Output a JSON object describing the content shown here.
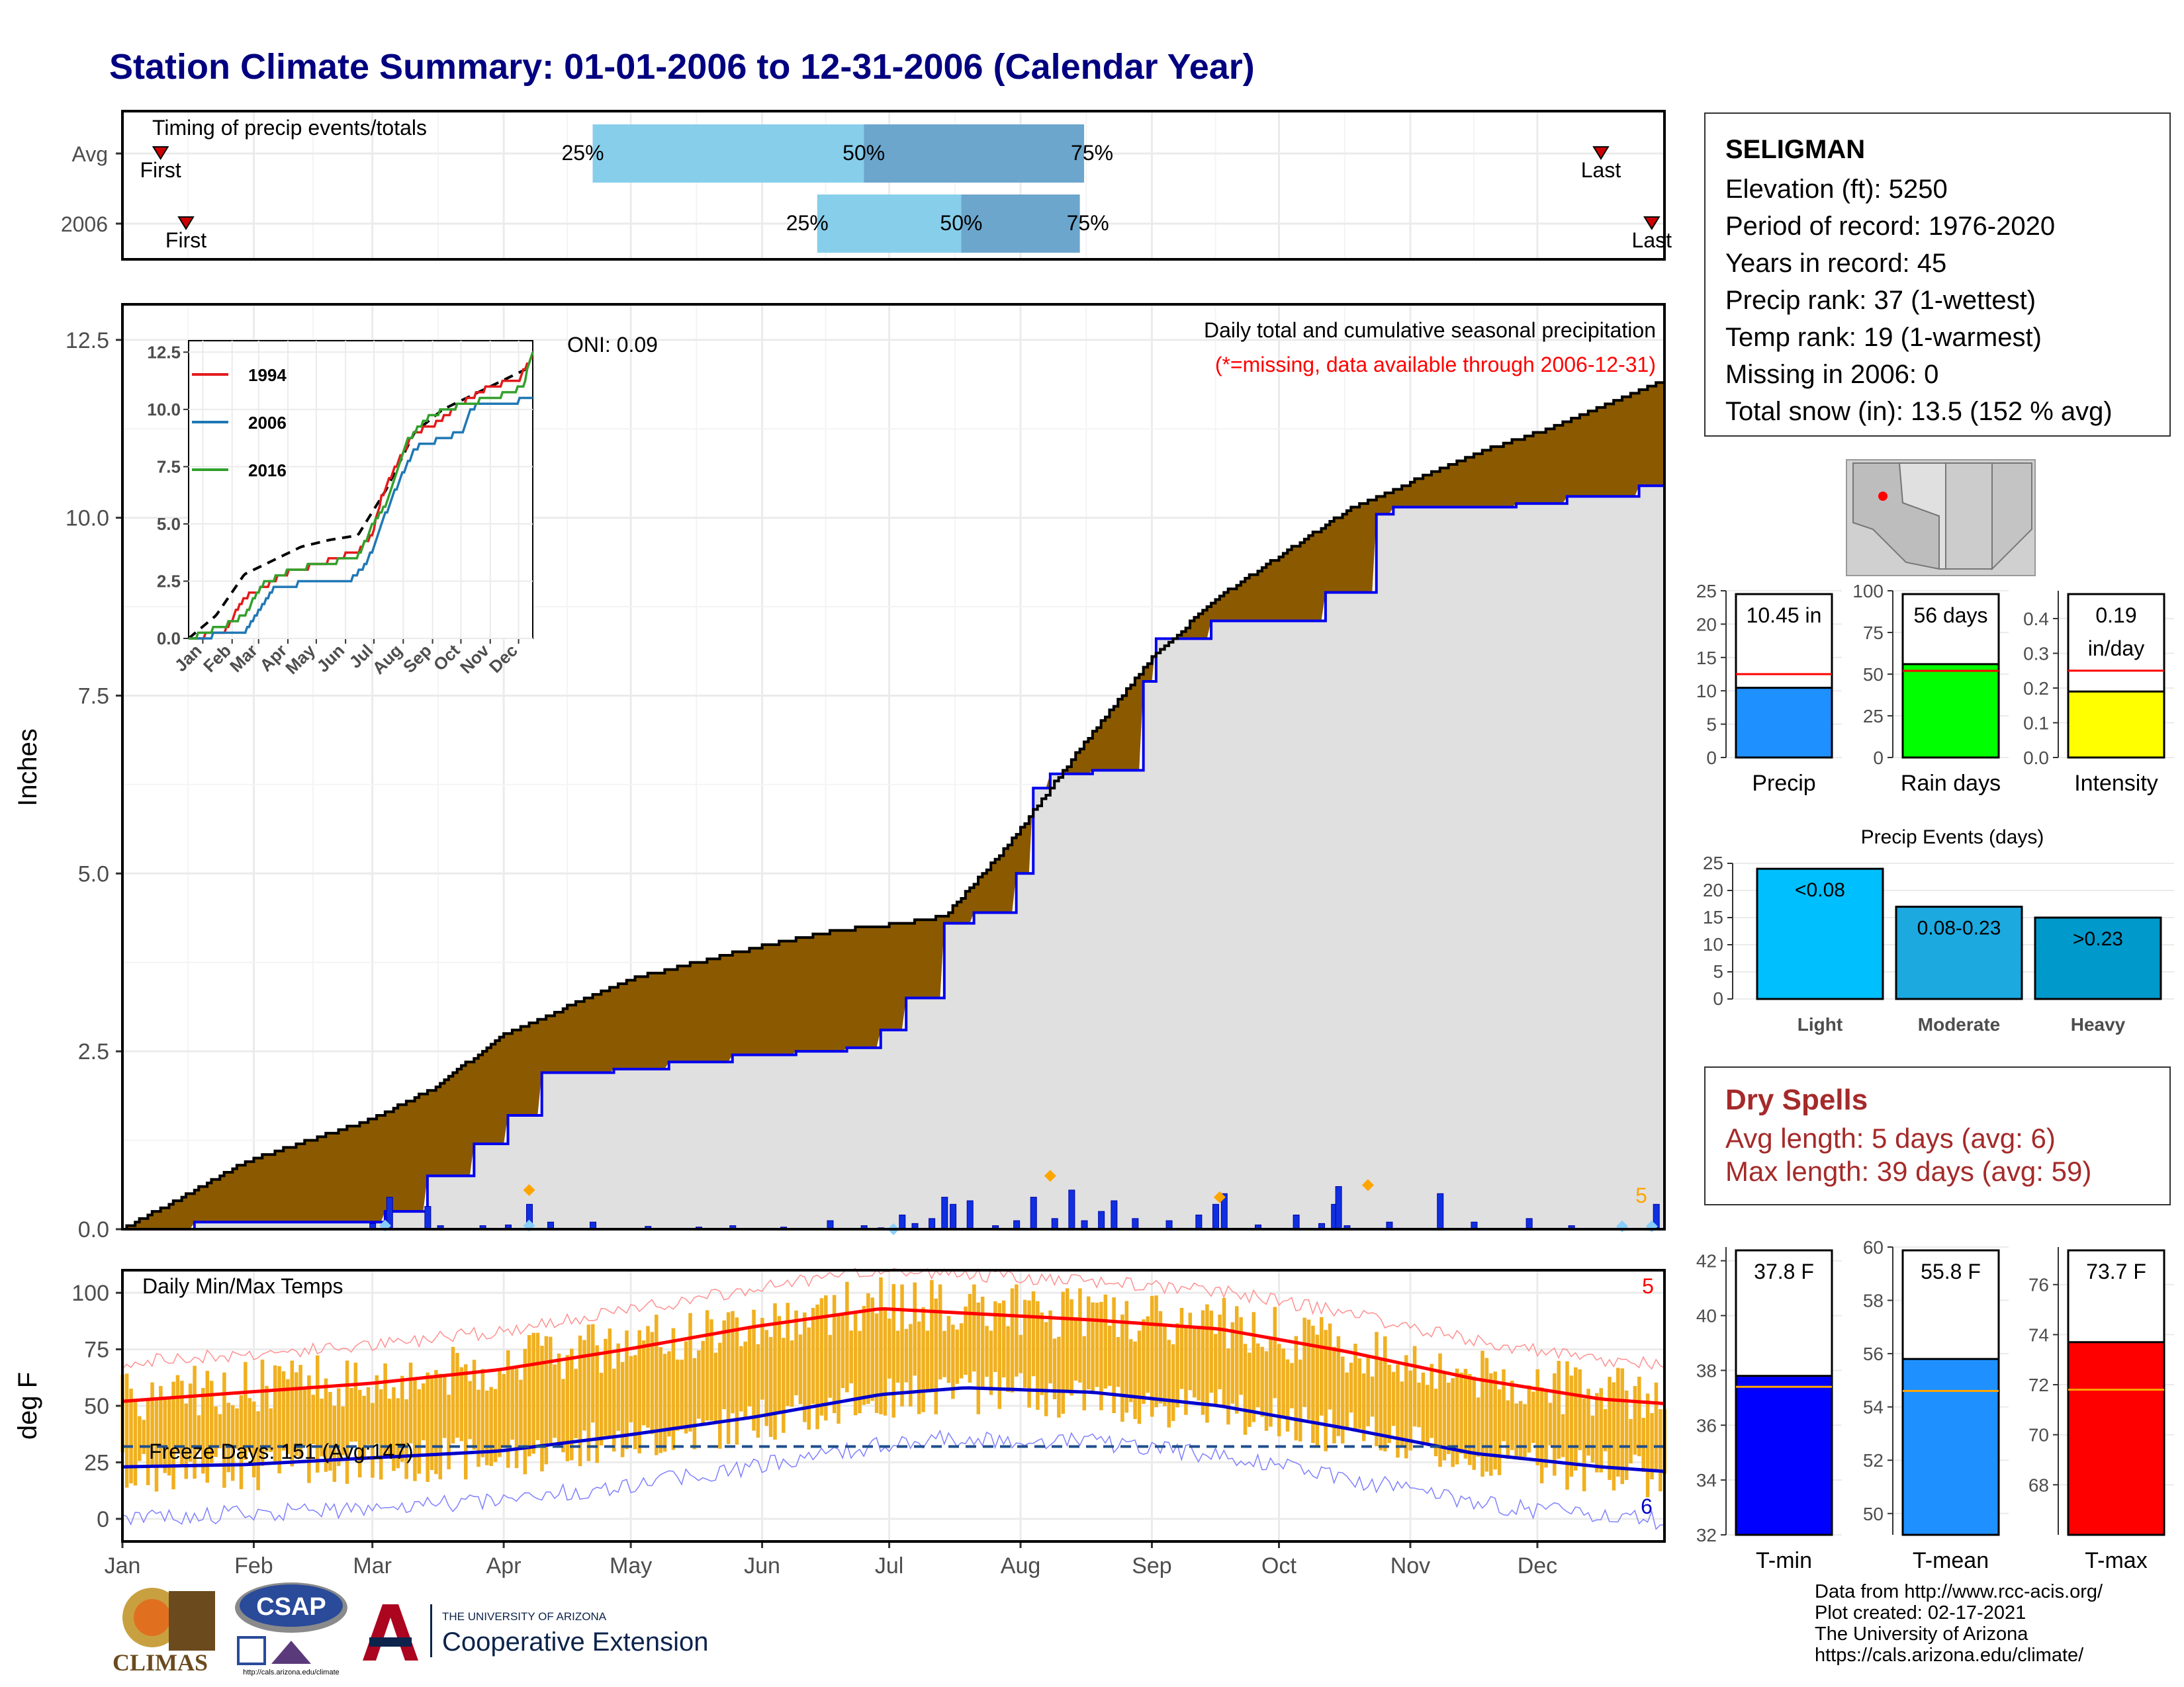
{
  "title": "Station Climate Summary: 01-01-2006 to 12-31-2006 (Calendar Year)",
  "colors": {
    "title": "#000080",
    "precip_area": "#8B5A00",
    "cum_obs_fill": "#E0E0E0",
    "cum_obs_line": "#0000EE",
    "timing_light": "#87CEEB",
    "timing_dark": "#6CA6CD",
    "temp_band": "#F0B020",
    "tmax_line": "#FF0000",
    "tmin_line": "#0000CC",
    "dry_spells": "#A52A2A"
  },
  "timing": {
    "label": "Timing of precip events/totals",
    "rows": [
      {
        "name": "Avg",
        "first_label": "First",
        "first_doy": 10,
        "last_label": "Last",
        "last_doy": 350,
        "q25_doy": 112,
        "q50_doy": 176,
        "q75_doy": 228,
        "p25": "25%",
        "p50": "50%",
        "p75": "75%"
      },
      {
        "name": "2006",
        "first_label": "First",
        "first_doy": 16,
        "last_label": "Last",
        "last_doy": 362,
        "q25_doy": 165,
        "q50_doy": 199,
        "q75_doy": 227,
        "p25": "25%",
        "p50": "50%",
        "p75": "75%"
      }
    ]
  },
  "main": {
    "ylabel": "Inches",
    "oni": "ONI: 0.09",
    "subtitle": "Daily total and cumulative seasonal precipitation",
    "missing_note": "(*=missing, data available through 2006-12-31)",
    "right_count": "5",
    "yticks": [
      "0.0",
      "2.5",
      "5.0",
      "7.5",
      "10.0",
      "12.5"
    ],
    "ylim": [
      0,
      13
    ],
    "avg_cum_anchors": [
      [
        1,
        0
      ],
      [
        15,
        0.45
      ],
      [
        30,
        0.95
      ],
      [
        60,
        1.55
      ],
      [
        75,
        2.0
      ],
      [
        90,
        2.7
      ],
      [
        105,
        3.1
      ],
      [
        120,
        3.5
      ],
      [
        150,
        3.95
      ],
      [
        170,
        4.2
      ],
      [
        185,
        4.3
      ],
      [
        195,
        4.4
      ],
      [
        210,
        5.4
      ],
      [
        225,
        6.6
      ],
      [
        245,
        8.1
      ],
      [
        260,
        8.9
      ],
      [
        275,
        9.5
      ],
      [
        290,
        10.1
      ],
      [
        305,
        10.5
      ],
      [
        320,
        10.9
      ],
      [
        340,
        11.3
      ],
      [
        365,
        11.95
      ]
    ],
    "obs_cum_steps": [
      [
        1,
        0
      ],
      [
        18,
        0.1
      ],
      [
        63,
        0.25
      ],
      [
        73,
        0.75
      ],
      [
        84,
        1.2
      ],
      [
        92,
        1.6
      ],
      [
        100,
        2.2
      ],
      [
        117,
        2.25
      ],
      [
        130,
        2.35
      ],
      [
        145,
        2.45
      ],
      [
        160,
        2.5
      ],
      [
        172,
        2.55
      ],
      [
        180,
        2.8
      ],
      [
        186,
        3.25
      ],
      [
        195,
        4.3
      ],
      [
        202,
        4.45
      ],
      [
        212,
        5.0
      ],
      [
        216,
        6.2
      ],
      [
        220,
        6.4
      ],
      [
        230,
        6.45
      ],
      [
        242,
        7.7
      ],
      [
        245,
        8.3
      ],
      [
        258,
        8.55
      ],
      [
        285,
        8.95
      ],
      [
        297,
        10.05
      ],
      [
        301,
        10.15
      ],
      [
        330,
        10.2
      ],
      [
        342,
        10.3
      ],
      [
        359,
        10.45
      ],
      [
        365,
        10.45
      ]
    ],
    "daily_precip": [
      [
        60,
        0.08
      ],
      [
        64,
        0.45
      ],
      [
        73,
        0.32
      ],
      [
        76,
        0.05
      ],
      [
        86,
        0.05
      ],
      [
        92,
        0.06
      ],
      [
        97,
        0.35
      ],
      [
        102,
        0.1
      ],
      [
        112,
        0.1
      ],
      [
        125,
        0.04
      ],
      [
        137,
        0.03
      ],
      [
        145,
        0.05
      ],
      [
        157,
        0.03
      ],
      [
        168,
        0.12
      ],
      [
        176,
        0.05
      ],
      [
        180,
        0.02
      ],
      [
        185,
        0.2
      ],
      [
        188,
        0.08
      ],
      [
        192,
        0.15
      ],
      [
        195,
        0.45
      ],
      [
        197,
        0.35
      ],
      [
        201,
        0.4
      ],
      [
        207,
        0.05
      ],
      [
        212,
        0.12
      ],
      [
        216,
        0.45
      ],
      [
        221,
        0.15
      ],
      [
        225,
        0.55
      ],
      [
        228,
        0.12
      ],
      [
        232,
        0.25
      ],
      [
        235,
        0.4
      ],
      [
        240,
        0.15
      ],
      [
        248,
        0.12
      ],
      [
        255,
        0.2
      ],
      [
        259,
        0.35
      ],
      [
        261,
        0.5
      ],
      [
        269,
        0.06
      ],
      [
        278,
        0.2
      ],
      [
        284,
        0.08
      ],
      [
        287,
        0.35
      ],
      [
        288,
        0.6
      ],
      [
        290,
        0.05
      ],
      [
        300,
        0.1
      ],
      [
        312,
        0.5
      ],
      [
        320,
        0.1
      ],
      [
        333,
        0.15
      ],
      [
        343,
        0.05
      ],
      [
        363,
        0.35
      ]
    ],
    "markers_at": [
      [
        63,
        0.05
      ],
      [
        97,
        0.05
      ],
      [
        97,
        0.55
      ],
      [
        183,
        0.0
      ],
      [
        220,
        0.75
      ],
      [
        260,
        0.45
      ],
      [
        295,
        0.62
      ],
      [
        355,
        0.04
      ],
      [
        362,
        0.04
      ]
    ]
  },
  "inset": {
    "yticks": [
      "0.0",
      "2.5",
      "5.0",
      "7.5",
      "10.0",
      "12.5"
    ],
    "months": [
      "Jan",
      "Feb",
      "Mar",
      "Apr",
      "May",
      "Jun",
      "Jul",
      "Aug",
      "Sep",
      "Oct",
      "Nov",
      "Dec"
    ],
    "legend": [
      {
        "name": "1994",
        "color": "#E31A1C"
      },
      {
        "name": "2006",
        "color": "#1F78B4"
      },
      {
        "name": "2016",
        "color": "#33A02C"
      }
    ],
    "avg_anchors": [
      [
        1,
        0
      ],
      [
        30,
        1.0
      ],
      [
        60,
        2.8
      ],
      [
        90,
        3.4
      ],
      [
        120,
        4.0
      ],
      [
        150,
        4.3
      ],
      [
        180,
        4.5
      ],
      [
        210,
        6.5
      ],
      [
        240,
        9.0
      ],
      [
        270,
        10.0
      ],
      [
        300,
        10.6
      ],
      [
        330,
        11.2
      ],
      [
        365,
        11.9
      ]
    ],
    "series_anchors": {
      "1994": [
        [
          1,
          0
        ],
        [
          40,
          0.3
        ],
        [
          60,
          1.8
        ],
        [
          80,
          2.2
        ],
        [
          100,
          2.8
        ],
        [
          150,
          3.4
        ],
        [
          180,
          3.8
        ],
        [
          195,
          4.5
        ],
        [
          205,
          6.2
        ],
        [
          220,
          7.5
        ],
        [
          240,
          9.0
        ],
        [
          260,
          9.3
        ],
        [
          290,
          10.3
        ],
        [
          320,
          11.0
        ],
        [
          350,
          11.3
        ],
        [
          365,
          12.3
        ]
      ],
      "2006": [
        [
          1,
          0
        ],
        [
          60,
          0.3
        ],
        [
          75,
          1.2
        ],
        [
          92,
          2.2
        ],
        [
          120,
          2.4
        ],
        [
          170,
          2.5
        ],
        [
          190,
          3.3
        ],
        [
          205,
          5.0
        ],
        [
          220,
          6.5
        ],
        [
          240,
          8.3
        ],
        [
          260,
          8.6
        ],
        [
          290,
          9.0
        ],
        [
          300,
          10.1
        ],
        [
          340,
          10.3
        ],
        [
          365,
          10.5
        ]
      ],
      "2016": [
        [
          1,
          0
        ],
        [
          35,
          0.5
        ],
        [
          60,
          1.0
        ],
        [
          80,
          2.4
        ],
        [
          110,
          3.0
        ],
        [
          150,
          3.3
        ],
        [
          180,
          3.6
        ],
        [
          200,
          5.3
        ],
        [
          210,
          5.8
        ],
        [
          230,
          8.5
        ],
        [
          245,
          9.3
        ],
        [
          260,
          9.8
        ],
        [
          290,
          10.2
        ],
        [
          330,
          10.6
        ],
        [
          355,
          11.0
        ],
        [
          365,
          12.6
        ]
      ]
    }
  },
  "temps": {
    "label": "Daily Min/Max Temps",
    "ylabel": "deg F",
    "freeze_label": "Freeze Days: 151 (Avg:147)",
    "count_top": "5",
    "count_bottom": "6",
    "yticks": [
      "0",
      "25",
      "50",
      "75",
      "100"
    ],
    "ylim": [
      -10,
      110
    ],
    "months": [
      "Jan",
      "Feb",
      "Mar",
      "Apr",
      "May",
      "Jun",
      "Jul",
      "Aug",
      "Sep",
      "Oct",
      "Nov",
      "Dec"
    ],
    "normal_max_anchors": [
      [
        1,
        52
      ],
      [
        30,
        56
      ],
      [
        60,
        60
      ],
      [
        90,
        66
      ],
      [
        120,
        75
      ],
      [
        150,
        85
      ],
      [
        180,
        93
      ],
      [
        200,
        91
      ],
      [
        230,
        88
      ],
      [
        260,
        84
      ],
      [
        290,
        74
      ],
      [
        320,
        62
      ],
      [
        350,
        53
      ],
      [
        365,
        51
      ]
    ],
    "normal_min_anchors": [
      [
        1,
        23
      ],
      [
        30,
        24
      ],
      [
        60,
        27
      ],
      [
        90,
        30
      ],
      [
        120,
        37
      ],
      [
        150,
        45
      ],
      [
        180,
        55
      ],
      [
        200,
        58
      ],
      [
        230,
        56
      ],
      [
        260,
        50
      ],
      [
        290,
        40
      ],
      [
        320,
        29
      ],
      [
        350,
        23
      ],
      [
        365,
        21
      ]
    ],
    "freeze_line": 32
  },
  "summary_bars": [
    {
      "label": "Precip",
      "value_label": "10.45 in",
      "value": 10.45,
      "avg": 12.5,
      "ymax": 25,
      "color": "#1E90FF",
      "yticks": [
        "0",
        "5",
        "10",
        "15",
        "20",
        "25"
      ]
    },
    {
      "label": "Rain days",
      "value_label": "56 days",
      "value": 56,
      "avg": 52,
      "ymax": 100,
      "color": "#00FF00",
      "yticks": [
        "0",
        "25",
        "50",
        "75",
        "100"
      ]
    },
    {
      "label": "Intensity",
      "value_label": "0.19",
      "value_label2": "in/day",
      "value": 0.19,
      "avg": 0.25,
      "ymax": 0.48,
      "color": "#FFFF00",
      "yticks": [
        "0.0",
        "0.1",
        "0.2",
        "0.3",
        "0.4"
      ]
    }
  ],
  "events": {
    "title": "Precip Events (days)",
    "yticks": [
      "0",
      "5",
      "10",
      "15",
      "20",
      "25"
    ],
    "ymax": 25,
    "bars": [
      {
        "label": "Light",
        "bin": "<0.08",
        "value": 24,
        "color": "#00BFFF"
      },
      {
        "label": "Moderate",
        "bin": "0.08-0.23",
        "value": 17,
        "color": "#1CA9E0"
      },
      {
        "label": "Heavy",
        "bin": ">0.23",
        "value": 15,
        "color": "#0099CC"
      }
    ]
  },
  "temp_bars": [
    {
      "label": "T-min",
      "value_label": "37.8 F",
      "value": 37.8,
      "avg": 37.4,
      "ymin": 32,
      "ymax": 42.5,
      "color": "#0000FF",
      "yticks": [
        "32",
        "34",
        "36",
        "38",
        "40",
        "42"
      ]
    },
    {
      "label": "T-mean",
      "value_label": "55.8 F",
      "value": 55.8,
      "avg": 54.6,
      "ymin": 49.2,
      "ymax": 60,
      "color": "#1E90FF",
      "yticks": [
        "50",
        "52",
        "54",
        "56",
        "58",
        "60"
      ]
    },
    {
      "label": "T-max",
      "value_label": "73.7 F",
      "value": 73.7,
      "avg": 71.8,
      "ymin": 66,
      "ymax": 77.5,
      "color": "#FF0000",
      "yticks": [
        "68",
        "70",
        "72",
        "74",
        "76"
      ]
    }
  ],
  "station": {
    "name": "SELIGMAN",
    "lines": [
      "Elevation (ft): 5250",
      "Period of record: 1976-2020",
      "Years in record: 45",
      "Precip rank: 37 (1-wettest)",
      "Temp rank: 19 (1-warmest)",
      "Missing in 2006: 0",
      "Total snow (in): 13.5 (152 % avg)"
    ]
  },
  "dry_spells": {
    "title": "Dry Spells",
    "avg": "Avg length: 5 days (avg: 6)",
    "max": "Max length: 39 days (avg: 59)"
  },
  "credits": [
    "Data from http://www.rcc-acis.org/",
    "Plot created: 02-17-2021",
    "The University of Arizona",
    "https://cals.arizona.edu/climate/"
  ],
  "logos": {
    "climas": "CLIMAS",
    "csap": "CSAP",
    "csap_url": "http://cals.arizona.edu/climate",
    "ua_small": "THE UNIVERSITY OF ARIZONA",
    "ua_big": "Cooperative Extension"
  }
}
